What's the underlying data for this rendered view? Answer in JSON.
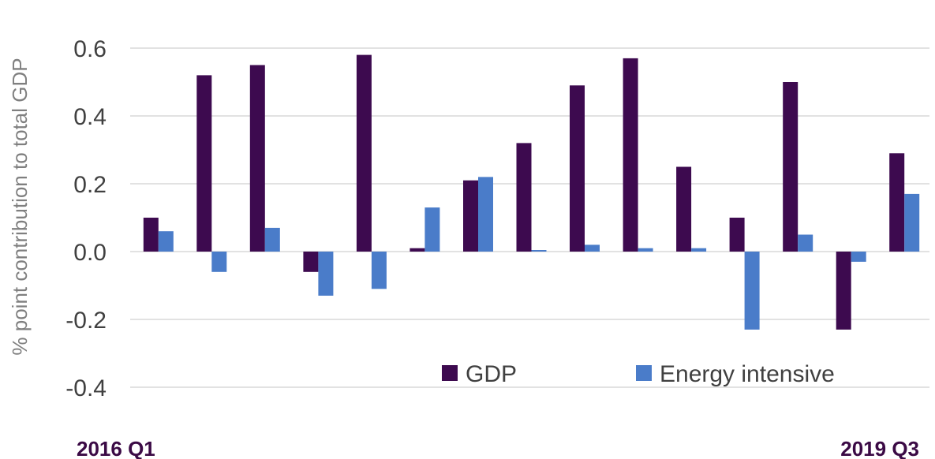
{
  "chart_data": {
    "type": "bar",
    "title": "",
    "xlabel": "",
    "ylabel": "% point contribution to total GDP",
    "ylim": [
      -0.4,
      0.6
    ],
    "yticks": [
      "0.6",
      "0.4",
      "0.2",
      "0.0",
      "-0.2",
      "-0.4"
    ],
    "x_first_label": "2016 Q1",
    "x_last_label": "2019 Q3",
    "grid": true,
    "legend_position": "bottom-right",
    "series": [
      {
        "name": "GDP",
        "color": "#3d0a4f",
        "values": [
          0.1,
          0.52,
          0.55,
          -0.06,
          0.58,
          0.01,
          0.21,
          0.32,
          0.49,
          0.57,
          0.25,
          0.1,
          0.5,
          -0.23,
          0.29
        ]
      },
      {
        "name": "Energy intensive",
        "color": "#4a7cc9",
        "values": [
          0.06,
          -0.06,
          0.07,
          -0.13,
          -0.11,
          0.13,
          0.22,
          0.0,
          0.02,
          0.01,
          0.01,
          -0.23,
          0.05,
          -0.03,
          0.17
        ]
      }
    ]
  }
}
